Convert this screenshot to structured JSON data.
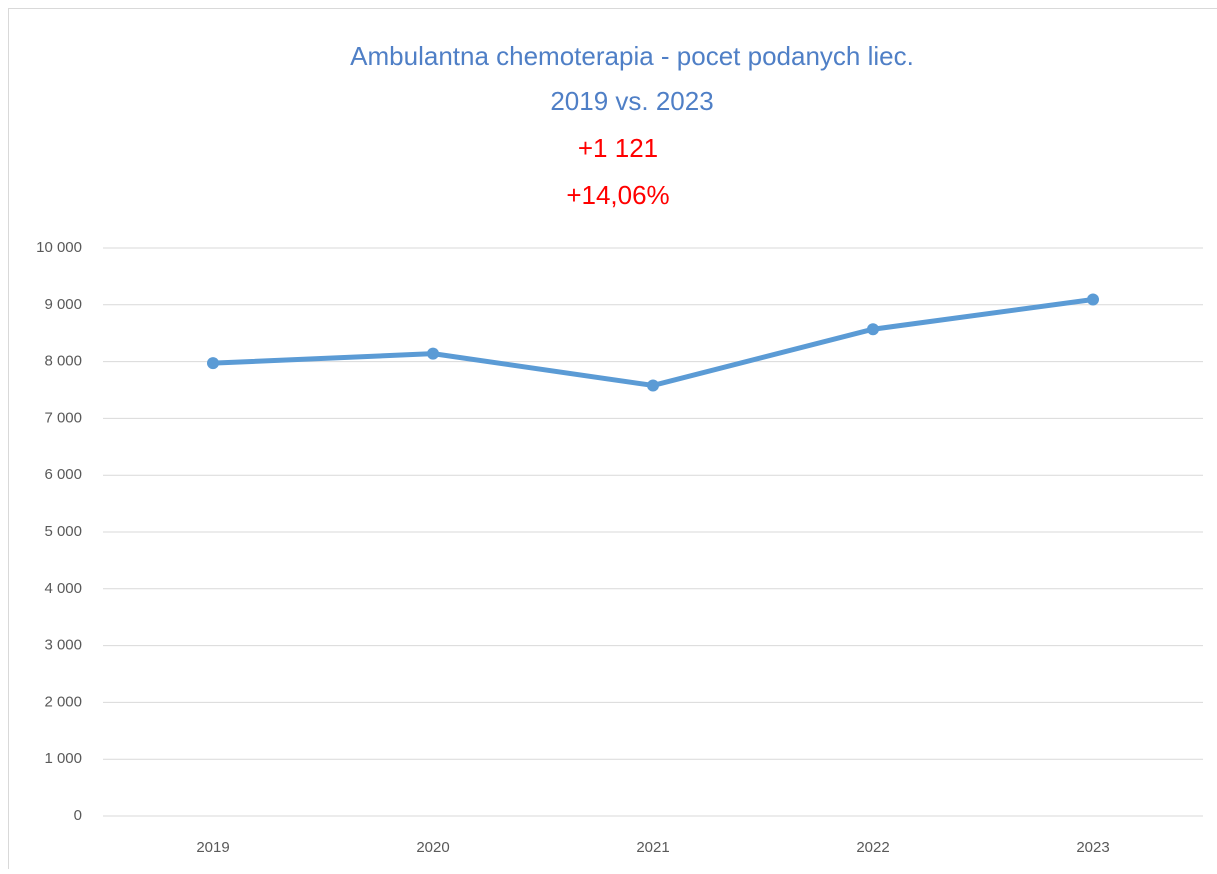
{
  "chart_data": {
    "type": "line",
    "title": "Ambulantna chemoterapia - pocet podanych liec.",
    "subtitle": "2019 vs. 2023",
    "annotations": [
      "+1 121",
      "+14,06%"
    ],
    "categories": [
      "2019",
      "2020",
      "2021",
      "2022",
      "2023"
    ],
    "series": [
      {
        "name": "Ambulantna chemoterapia",
        "color": "#5b9bd5",
        "values": [
          7973,
          8140,
          7580,
          8570,
          9094
        ]
      }
    ],
    "ylim": [
      0,
      10000
    ],
    "yticks": [
      0,
      {
        "value": 1000,
        "label": "1 000"
      },
      {
        "value": 2000,
        "label": "2 000"
      },
      {
        "value": 3000,
        "label": "3 000"
      },
      {
        "value": 4000,
        "label": "4 000"
      },
      {
        "value": 5000,
        "label": "5 000"
      },
      {
        "value": 6000,
        "label": "6 000"
      },
      {
        "value": 7000,
        "label": "7 000"
      },
      {
        "value": 8000,
        "label": "8 000"
      },
      {
        "value": 9000,
        "label": "9 000"
      },
      {
        "value": 10000,
        "label": "10 000"
      }
    ],
    "grid": true,
    "title_color": "#4f7fc6",
    "annotation_color": "#ff0000"
  }
}
